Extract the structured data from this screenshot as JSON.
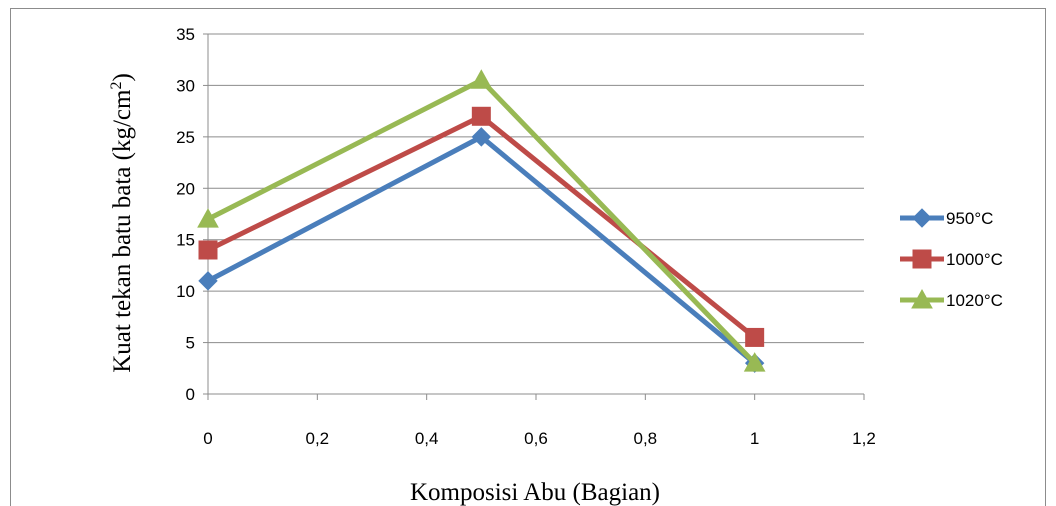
{
  "chart_data": {
    "type": "line",
    "xlabel": "Komposisi Abu (Bagian)",
    "ylabel_main": "Kuat tekan batu bata (kg/cm",
    "ylabel_sup": "2",
    "ylabel_end": ")",
    "xlim": [
      0,
      1.2
    ],
    "ylim": [
      0,
      35
    ],
    "xticks": [
      "0",
      "0,2",
      "0,4",
      "0,6",
      "0,8",
      "1",
      "1,2"
    ],
    "yticks": [
      "0",
      "5",
      "10",
      "15",
      "20",
      "25",
      "30",
      "35"
    ],
    "grid": "horizontal",
    "legend_position": "right",
    "series": [
      {
        "name": "950°C",
        "color": "#4a7ebb",
        "marker": "diamond",
        "x": [
          0,
          0.5,
          1
        ],
        "y": [
          11,
          25,
          3
        ]
      },
      {
        "name": "1000°C",
        "color": "#be4b48",
        "marker": "square",
        "x": [
          0,
          0.5,
          1
        ],
        "y": [
          14,
          27,
          5.5
        ]
      },
      {
        "name": "1020°C",
        "color": "#98b954",
        "marker": "triangle",
        "x": [
          0,
          0.5,
          1
        ],
        "y": [
          17,
          30.5,
          3
        ]
      }
    ]
  }
}
